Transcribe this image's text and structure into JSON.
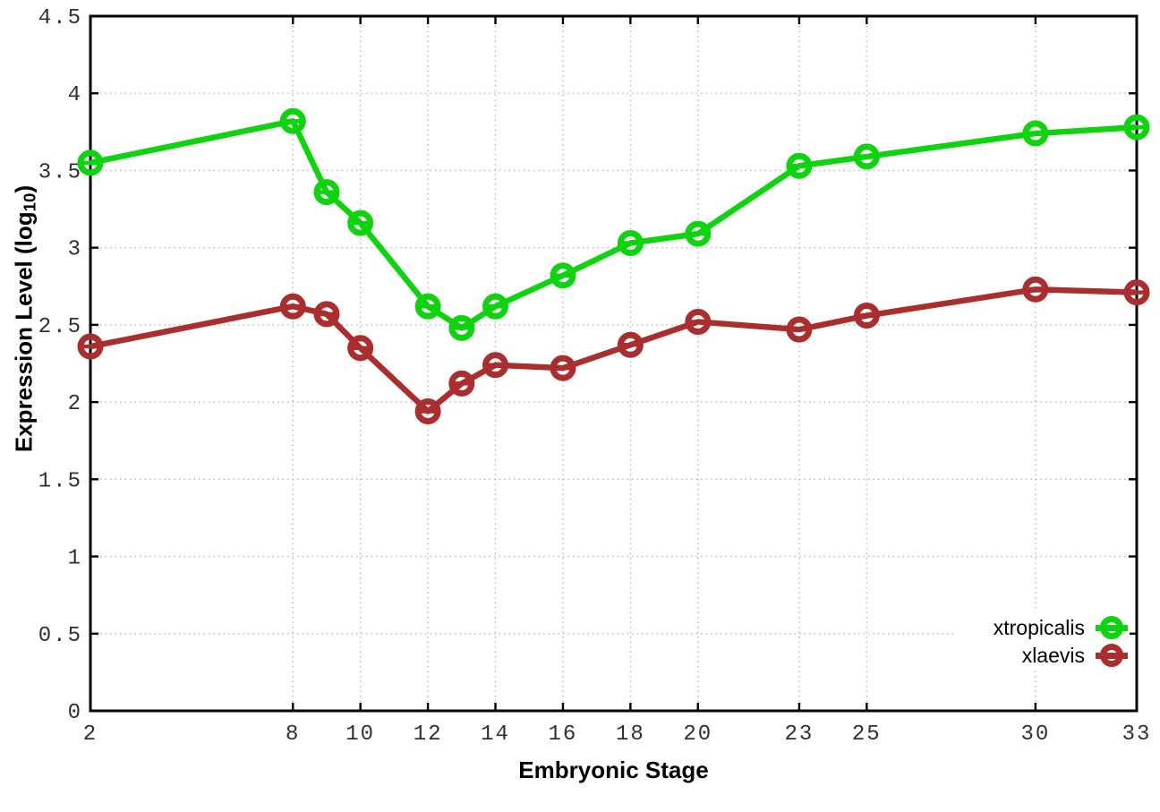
{
  "figure": {
    "xlabel": "Embryonic Stage",
    "ylabel": "Expression Level (log10)",
    "ylabel_parts": {
      "pre": "Expression Level (log",
      "sub": "10",
      "post": ")"
    }
  },
  "chart_data": {
    "type": "line",
    "title": "",
    "xlabel": "Embryonic Stage",
    "ylabel": "Expression Level (log10)",
    "xlim": [
      2,
      33
    ],
    "ylim": [
      0,
      4.5
    ],
    "xticks": [
      2,
      8,
      10,
      12,
      14,
      16,
      18,
      20,
      23,
      25,
      30,
      33
    ],
    "yticks": [
      0,
      0.5,
      1,
      1.5,
      2,
      2.5,
      3,
      3.5,
      4,
      4.5
    ],
    "ytick_labels": [
      "0",
      "0.5",
      "1",
      "1.5",
      "2",
      "2.5",
      "3",
      "3.5",
      "4",
      "4.5"
    ],
    "grid": true,
    "grid_style": "dotted",
    "legend_position": "bottom-right",
    "marker": "open-circle",
    "background": "#ffffff",
    "grid_color": "#b8b8b8",
    "axis_color": "#000000",
    "tick_label_color": "#303030",
    "x": [
      2,
      8,
      9,
      10,
      12,
      13,
      14,
      16,
      18,
      20,
      23,
      25,
      30,
      33
    ],
    "series": [
      {
        "name": "xtropicalis",
        "color": "#0fd30f",
        "values": [
          3.55,
          3.82,
          3.36,
          3.16,
          2.62,
          2.48,
          2.62,
          2.82,
          3.03,
          3.09,
          3.53,
          3.59,
          3.74,
          3.78
        ]
      },
      {
        "name": "xlaevis",
        "color": "#AA2E2E",
        "values": [
          2.36,
          2.62,
          2.57,
          2.35,
          1.94,
          2.12,
          2.24,
          2.22,
          2.37,
          2.52,
          2.47,
          2.56,
          2.73,
          2.71
        ]
      }
    ]
  }
}
